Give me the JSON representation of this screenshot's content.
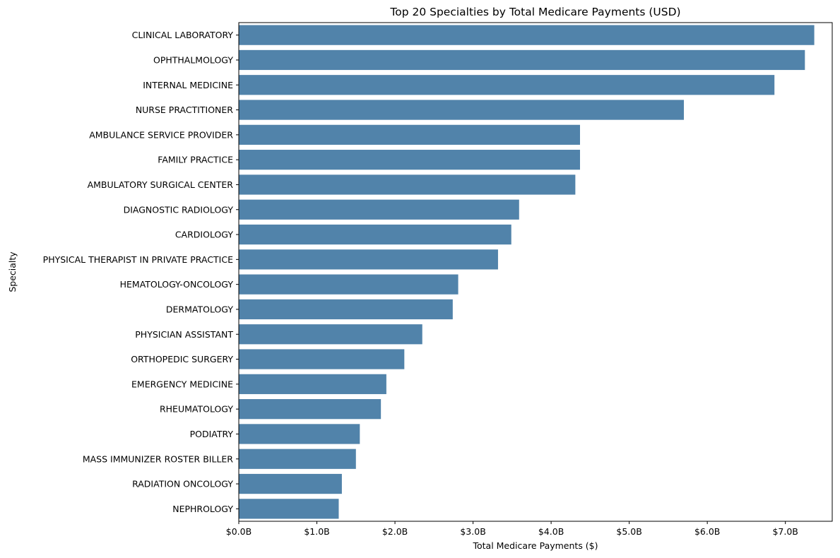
{
  "chart_data": {
    "type": "bar",
    "orientation": "horizontal",
    "title": "Top 20 Specialties by Total Medicare Payments (USD)",
    "xlabel": "Total Medicare Payments ($)",
    "ylabel": "Specialty",
    "bar_color": "#5183aa",
    "categories": [
      "CLINICAL LABORATORY",
      "OPHTHALMOLOGY",
      "INTERNAL MEDICINE",
      "NURSE PRACTITIONER",
      "AMBULANCE SERVICE PROVIDER",
      "FAMILY PRACTICE",
      "AMBULATORY SURGICAL CENTER",
      "DIAGNOSTIC RADIOLOGY",
      "CARDIOLOGY",
      "PHYSICAL THERAPIST IN PRIVATE PRACTICE",
      "HEMATOLOGY-ONCOLOGY",
      "DERMATOLOGY",
      "PHYSICIAN ASSISTANT",
      "ORTHOPEDIC SURGERY",
      "EMERGENCY MEDICINE",
      "RHEUMATOLOGY",
      "PODIATRY",
      "MASS IMMUNIZER ROSTER BILLER",
      "RADIATION ONCOLOGY",
      "NEPHROLOGY"
    ],
    "values": [
      7.37,
      7.25,
      6.86,
      5.7,
      4.37,
      4.37,
      4.31,
      3.59,
      3.49,
      3.32,
      2.81,
      2.74,
      2.35,
      2.12,
      1.89,
      1.82,
      1.55,
      1.5,
      1.32,
      1.28
    ],
    "value_unit": "billions USD",
    "xlim": [
      0,
      7.6
    ],
    "xticks": [
      0,
      1,
      2,
      3,
      4,
      5,
      6,
      7
    ],
    "xtick_labels": [
      "$0.0B",
      "$1.0B",
      "$2.0B",
      "$3.0B",
      "$4.0B",
      "$5.0B",
      "$6.0B",
      "$7.0B"
    ],
    "grid": false,
    "legend": false
  }
}
